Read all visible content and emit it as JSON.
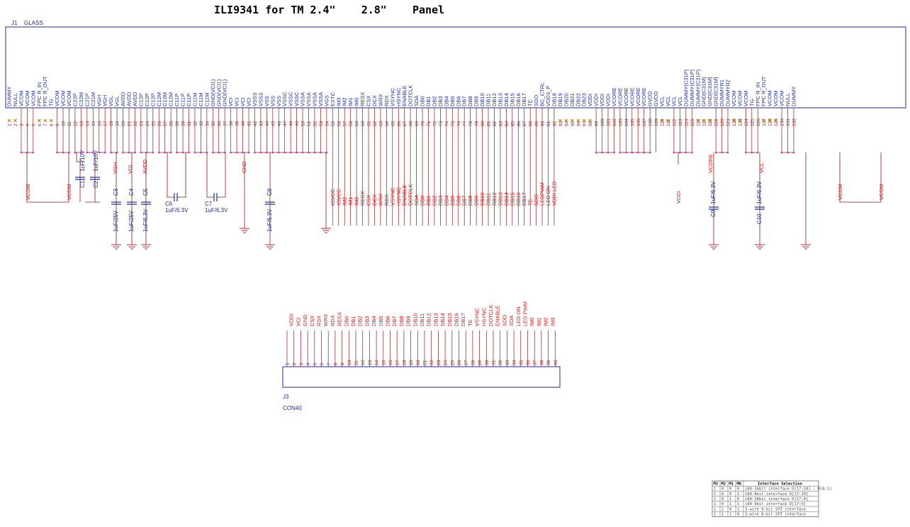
{
  "title": "ILI9341 for TM 2.4\"    2.8\"    Panel",
  "j1": {
    "ref": "J1",
    "value": "GLASS",
    "pins": [
      "DUMMY",
      "NULL",
      "VCOM",
      "VCOM",
      "VCOM",
      "FPC R_IN",
      "FPC R_OUT",
      "TG",
      "VCOM",
      "VCOM",
      "VCOM",
      "C22P",
      "C22M",
      "C21P",
      "C21M",
      "VGH",
      "VGH",
      "VGL",
      "VGL",
      "AVDD",
      "AVDD",
      "AVDD",
      "C12P",
      "C12P",
      "C12P",
      "C12M",
      "C12M",
      "C12M",
      "C11P",
      "C11P",
      "C11P",
      "C11M",
      "C11M",
      "C11M",
      "GND(VCI1)",
      "GND(VCI1)",
      "GND(VCI1)",
      "VCI",
      "VCI",
      "VCI",
      "VCI",
      "VSS3",
      "VSS3",
      "VSS",
      "VSS",
      "VSS",
      "VSSC",
      "VSSC",
      "VSSC",
      "VSSA",
      "VSSA",
      "VSSA",
      "VSSA",
      "VGS",
      "EXTC",
      "IM3",
      "IM2",
      "IM1",
      "IM0",
      "RESX",
      "CSX",
      "DCX",
      "WRX",
      "RDX",
      "VSYNC",
      "HSYNC",
      "ENABLE",
      "DOTCLK",
      "SDA",
      "DB0",
      "DB1",
      "DB2",
      "DB3",
      "DB4",
      "DB5",
      "DB6",
      "DB7",
      "DB8",
      "DB9",
      "DB10",
      "DB11",
      "DB12",
      "DB13",
      "DB14",
      "DB15",
      "DB16",
      "DB17",
      "TE",
      "SDO",
      "BC_CTRL",
      "VDD3_P",
      "DB18",
      "DB19",
      "DB20",
      "DB21",
      "DB22",
      "DB23",
      "VDDI",
      "VDDI",
      "VDDI",
      "VDDI",
      "VCORE",
      "VCORE",
      "VCORE",
      "VCORE",
      "VCORE",
      "VCORE",
      "GVDD",
      "GVDD",
      "VCL",
      "VCL",
      "VCL",
      "VCL",
      "DUMMY(C31P)",
      "DUMMY(C31P)",
      "DUMMY(C31P)",
      "GND(C31M)",
      "GND(C31M)",
      "GND(C31M)",
      "DUMMYR1",
      "DUMMYR2",
      "VCOM",
      "VCOM",
      "VCOM",
      "TG",
      "FPC R_IN",
      "FPC R_OUT",
      "VCOM",
      "VCOM",
      "VCOM",
      "NULL",
      "DUMMY"
    ],
    "signal_labels": [
      "IOVCC",
      "IOVCC",
      "IM2",
      "IM1",
      "IM0",
      "RESX",
      "CSX",
      "DCX",
      "WRX",
      "RDX",
      "VSYNC",
      "HSYNC",
      "ENABLE",
      "DOTCLK",
      "SDA",
      "DB0",
      "DB1",
      "DB2",
      "DB3",
      "DB4",
      "DB5",
      "DB6",
      "DB7",
      "DB8",
      "DB9",
      "DB10",
      "DB11",
      "DB12",
      "DB13",
      "DB14",
      "DB15",
      "DB16",
      "DB17",
      "TE",
      "SDO",
      "LEDPWM",
      "LED ON",
      "VDDI LED"
    ]
  },
  "nets": {
    "vcom": "VCOM",
    "vgh": "VGH",
    "vgl": "VGL",
    "avdd": "AVDD",
    "gnd": "GND",
    "vddi": "VDDI",
    "vcore": "VCORE",
    "vcl": "VCL"
  },
  "caps": {
    "C1": {
      "ref": "C1",
      "val": "1uF/10V"
    },
    "C2": {
      "ref": "C2",
      "val": "1uF/10V"
    },
    "C3": {
      "ref": "C3",
      "val": "1uF/25V"
    },
    "C4": {
      "ref": "C4",
      "val": "1uF/25V"
    },
    "C5": {
      "ref": "C5",
      "val": "1uF/6.3V"
    },
    "C6": {
      "ref": "C6",
      "val": "1uF/6.3V"
    },
    "C7": {
      "ref": "C7",
      "val": "1uF/6.3V"
    },
    "C8": {
      "ref": "C8",
      "val": "1uF/6.3V"
    },
    "C9": {
      "ref": "C9",
      "val": "1uF/6.3V"
    },
    "C10": {
      "ref": "C10",
      "val": "1uF/6.3V"
    }
  },
  "j3": {
    "ref": "J3",
    "value": "CON40",
    "labels": [
      "",
      "VDDI",
      "VCI",
      "GND",
      "CSX",
      "RSX",
      "WRX",
      "RDX",
      "RESX",
      "DB0",
      "DB1",
      "DB2",
      "DB3",
      "DB4",
      "DB5",
      "DB6",
      "DB7",
      "DB8",
      "DB9",
      "DB10",
      "DB11",
      "DB12",
      "DB13",
      "DB14",
      "DB15",
      "DB16",
      "DB17",
      "TE",
      "VSYNC",
      "HSYNC",
      "DOTCLK",
      "ENABLE",
      "SDO",
      "SDA",
      "LED ON",
      "LED PWM",
      "IM0",
      "IM1",
      "IM2",
      "IM3"
    ]
  },
  "table": {
    "headers": [
      "M3",
      "M2",
      "M1",
      "M0",
      "Interface Selection"
    ],
    "rows": [
      [
        "1",
        "0",
        "0",
        "0",
        "i80-16bit interface D[17:10] ; D[8:1]"
      ],
      [
        "1",
        "0",
        "0",
        "1",
        "i80-8bit interface D[17:10]"
      ],
      [
        "1",
        "0",
        "1",
        "0",
        "i80-18bit interface D[17:0]"
      ],
      [
        "1",
        "0",
        "1",
        "1",
        "i80-9bit interface D[17:9]"
      ],
      [
        "1",
        "1",
        "0",
        "1",
        "3-wire 9-bit SPI interface"
      ],
      [
        "1",
        "1",
        "1",
        "0",
        "3-wire 8-bit SPI interface"
      ]
    ]
  }
}
